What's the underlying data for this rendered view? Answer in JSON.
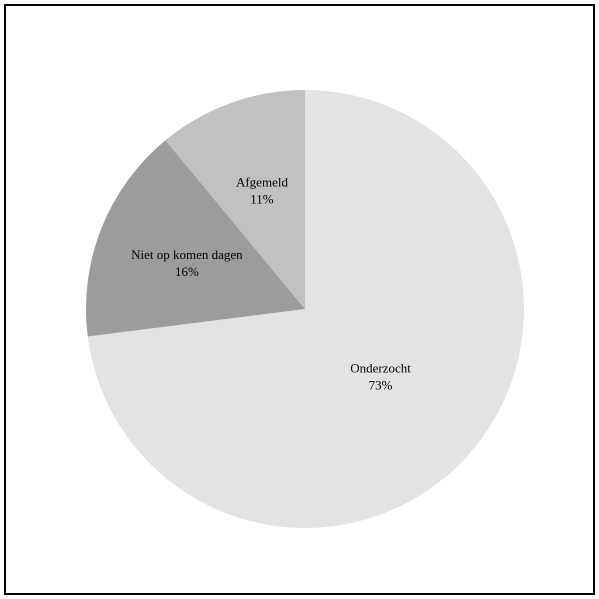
{
  "chart_data": {
    "type": "pie",
    "title": "",
    "start_angle_deg": 0,
    "direction": "clockwise",
    "slices": [
      {
        "label": "Onderzocht",
        "value": 73,
        "value_label": "73%",
        "color": "#e3e3e3"
      },
      {
        "label": "Niet op komen dagen",
        "value": 16,
        "value_label": "16%",
        "color": "#9c9c9c"
      },
      {
        "label": "Afgemeld",
        "value": 11,
        "value_label": "11%",
        "color": "#c1c1c1"
      }
    ],
    "legend": "none"
  }
}
